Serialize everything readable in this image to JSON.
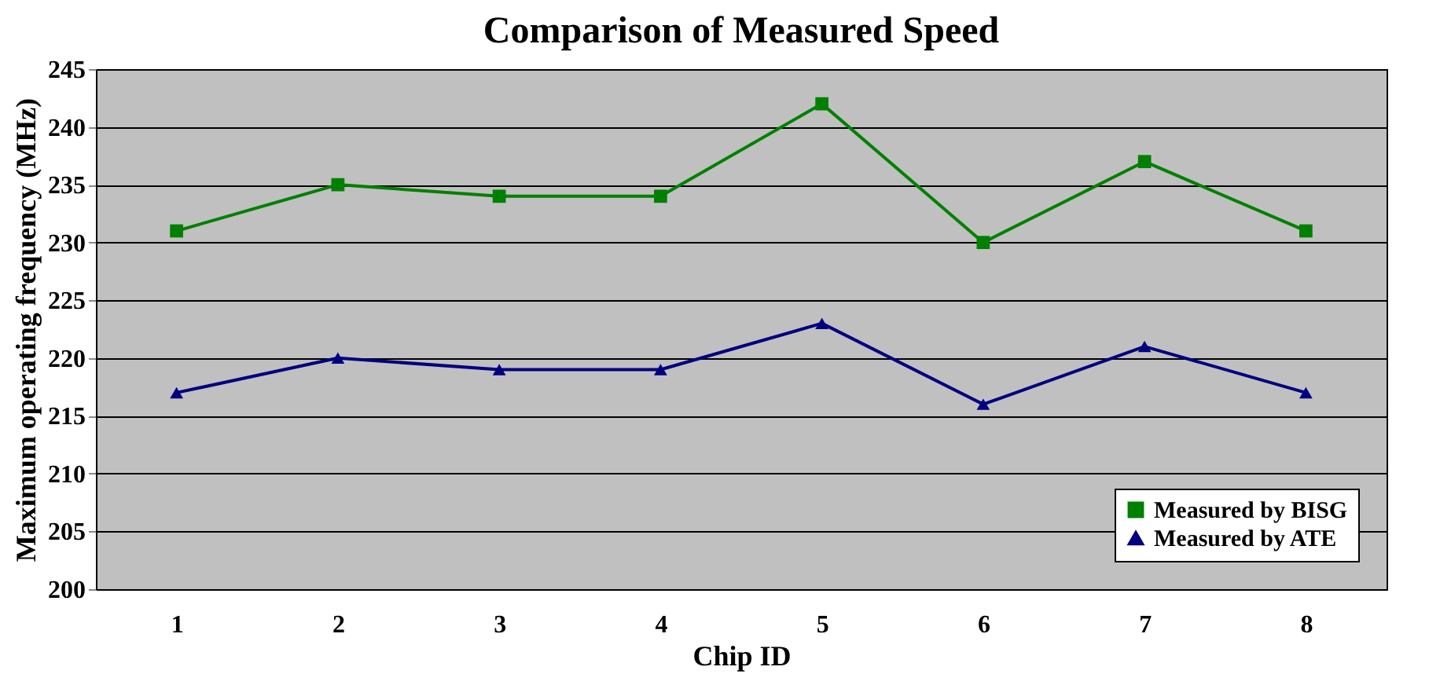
{
  "chart_data": {
    "type": "line",
    "title": "Comparison of Measured Speed",
    "xlabel": "Chip ID",
    "ylabel": "Maximum operating frequency (MHz)",
    "categories": [
      "1",
      "2",
      "3",
      "4",
      "5",
      "6",
      "7",
      "8"
    ],
    "series": [
      {
        "name": "Measured by BISG",
        "color": "#008000",
        "marker": "square",
        "values": [
          231,
          235,
          234,
          234,
          242,
          230,
          237,
          231
        ]
      },
      {
        "name": "Measured by ATE",
        "color": "#000080",
        "marker": "triangle",
        "values": [
          217,
          220,
          219,
          219,
          223,
          216,
          221,
          217
        ]
      }
    ],
    "ylim": [
      200,
      245
    ],
    "yticks": [
      200,
      205,
      210,
      215,
      220,
      225,
      230,
      235,
      240,
      245
    ],
    "grid": "y",
    "legend": "bottom right",
    "line_style": "solid"
  }
}
